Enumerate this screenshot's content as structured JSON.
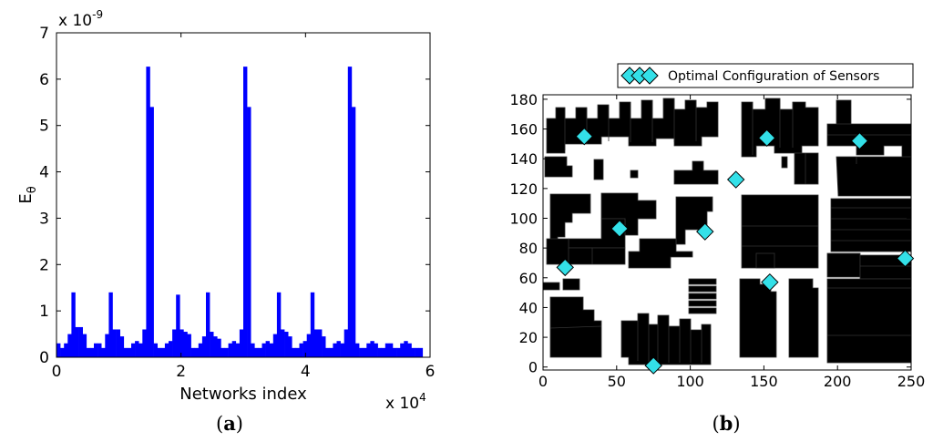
{
  "chart_data": [
    {
      "type": "bar",
      "title": "",
      "xlabel": "Networks index",
      "ylabel": "E",
      "ylabel_subscript": "θ",
      "xlim": [
        0,
        60000
      ],
      "ylim": [
        0,
        7e-09
      ],
      "x_exponent": "x 10",
      "x_exponent_power": "4",
      "y_exponent": "x 10",
      "y_exponent_power": "-9",
      "x_ticks": [
        "0",
        "2",
        "4",
        "6"
      ],
      "y_ticks": [
        "0",
        "1",
        "2",
        "3",
        "4",
        "5",
        "6",
        "7"
      ],
      "color": "#0000ff",
      "caption": [
        "(",
        "a",
        ")"
      ],
      "bin_width": 600,
      "x": [
        0,
        600,
        1200,
        1800,
        2400,
        3000,
        3600,
        4200,
        4800,
        5400,
        6000,
        6600,
        7200,
        7800,
        8400,
        9000,
        9600,
        10200,
        10800,
        11400,
        12000,
        12600,
        13200,
        13800,
        14400,
        15000,
        15600,
        16200,
        16800,
        17400,
        18000,
        18600,
        19200,
        19800,
        20400,
        21000,
        21600,
        22200,
        22800,
        23400,
        24000,
        24600,
        25200,
        25800,
        26400,
        27000,
        27600,
        28200,
        28800,
        29400,
        30000,
        30600,
        31200,
        31800,
        32400,
        33000,
        33600,
        34200,
        34800,
        35400,
        36000,
        36600,
        37200,
        37800,
        38400,
        39000,
        39600,
        40200,
        40800,
        41400,
        42000,
        42600,
        43200,
        43800,
        44400,
        45000,
        45600,
        46200,
        46800,
        47400,
        48000,
        48600,
        49200,
        49800,
        50400,
        51000,
        51600,
        52200,
        52800,
        53400,
        54000,
        54600,
        55200,
        55800,
        56400,
        57000,
        57600,
        58200
      ],
      "values": [
        0.3,
        0.2,
        0.3,
        0.5,
        1.4,
        0.65,
        0.65,
        0.5,
        0.2,
        0.2,
        0.3,
        0.3,
        0.2,
        0.5,
        1.4,
        0.6,
        0.6,
        0.45,
        0.2,
        0.2,
        0.3,
        0.35,
        0.3,
        0.6,
        6.27,
        5.4,
        0.3,
        0.2,
        0.2,
        0.3,
        0.35,
        0.6,
        1.35,
        0.6,
        0.55,
        0.5,
        0.2,
        0.2,
        0.3,
        0.45,
        1.4,
        0.55,
        0.45,
        0.4,
        0.2,
        0.2,
        0.3,
        0.35,
        0.3,
        0.6,
        6.27,
        5.4,
        0.3,
        0.2,
        0.2,
        0.3,
        0.35,
        0.3,
        0.5,
        1.4,
        0.6,
        0.55,
        0.45,
        0.2,
        0.2,
        0.3,
        0.35,
        0.5,
        1.4,
        0.6,
        0.6,
        0.45,
        0.2,
        0.2,
        0.3,
        0.35,
        0.3,
        0.6,
        6.27,
        5.4,
        0.3,
        0.2,
        0.2,
        0.3,
        0.35,
        0.3,
        0.2,
        0.2,
        0.3,
        0.3,
        0.2,
        0.2,
        0.3,
        0.35,
        0.3,
        0.2,
        0.2,
        0.2
      ]
    },
    {
      "type": "scatter",
      "title": "",
      "xlim": [
        0,
        250
      ],
      "ylim": [
        -2,
        183
      ],
      "x_ticks": [
        "0",
        "50",
        "100",
        "150",
        "200",
        "250"
      ],
      "y_ticks": [
        "0",
        "20",
        "40",
        "60",
        "80",
        "100",
        "120",
        "140",
        "160",
        "180"
      ],
      "legend": "Optimal Configuration of Sensors",
      "legend_position": "top",
      "marker": "diamond",
      "marker_color": "#33e0e8",
      "building_color": "#faf5dc",
      "caption": [
        "(",
        "b",
        ")"
      ],
      "series": [
        {
          "name": "Optimal Configuration of Sensors",
          "x": [
            28,
            152,
            215,
            131,
            52,
            110,
            15,
            154,
            246,
            75
          ],
          "y": [
            155,
            154,
            152,
            126,
            93,
            91,
            67,
            57,
            73,
            1
          ]
        }
      ]
    }
  ]
}
